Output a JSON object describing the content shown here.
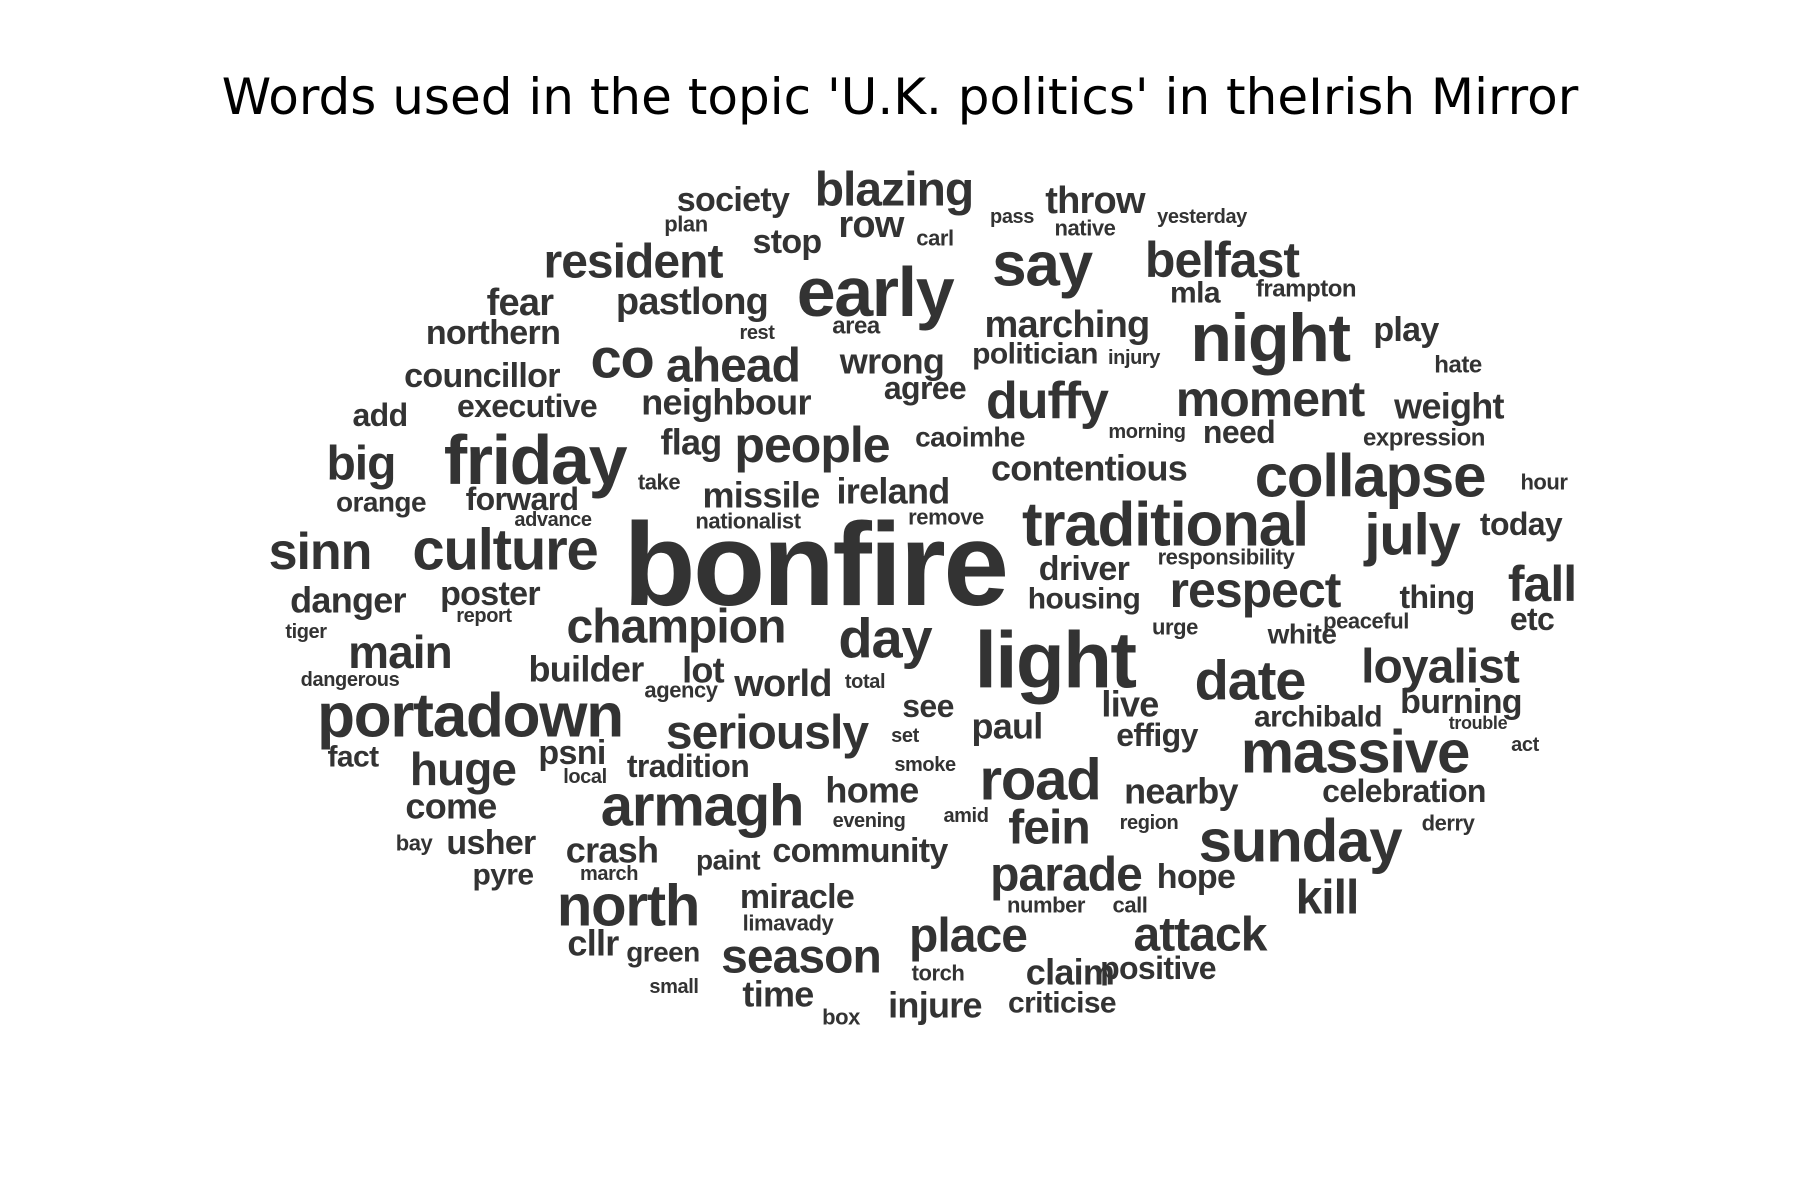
{
  "title": "Words used in the topic 'U.K. politics' in theIrish Mirror",
  "text_color": "#333333",
  "background": "#ffffff",
  "words": [
    "bonfire",
    "light",
    "friday",
    "early",
    "night",
    "collapse",
    "traditional",
    "culture",
    "massive",
    "say",
    "portadown",
    "armagh",
    "sunday",
    "road",
    "date",
    "people",
    "day",
    "respect",
    "july",
    "north",
    "belfast",
    "ahead",
    "resident",
    "champion",
    "duffy",
    "seriously",
    "moment",
    "sinn",
    "loyalist",
    "main",
    "co",
    "blazing",
    "place",
    "attack",
    "parade",
    "season",
    "huge",
    "fall",
    "fein",
    "big",
    "kill",
    "live",
    "marching",
    "contentious",
    "neighbour",
    "missile",
    "ireland",
    "society",
    "pastlong",
    "throw",
    "row",
    "stop",
    "fear",
    "northern",
    "councillor",
    "executive",
    "flag",
    "wrong",
    "politician",
    "mla",
    "play",
    "weight",
    "need",
    "danger",
    "poster",
    "builder",
    "lot",
    "world",
    "see",
    "paul",
    "effigy",
    "archibald",
    "burning",
    "psni",
    "tradition",
    "home",
    "nearby",
    "celebration",
    "come",
    "usher",
    "crash",
    "community",
    "hope",
    "miracle",
    "cllr",
    "green",
    "time",
    "claim",
    "positive",
    "criticise",
    "injure",
    "housing",
    "driver",
    "thing",
    "white",
    "fact",
    "agree",
    "caoimhe",
    "forward",
    "orange",
    "add",
    "etc",
    "today",
    "expression",
    "green",
    "hate",
    "frampton",
    "plan",
    "pass",
    "native",
    "yesterday",
    "carl",
    "rest",
    "area",
    "injury",
    "morning",
    "hour",
    "take",
    "advance",
    "nationalist",
    "remove",
    "responsibility",
    "report",
    "tiger",
    "urge",
    "peaceful",
    "dangerous",
    "agency",
    "total",
    "set",
    "trouble",
    "act",
    "smoke",
    "local",
    "evening",
    "amid",
    "region",
    "derry",
    "bay",
    "march",
    "paint",
    "pyre",
    "number",
    "call",
    "limavady",
    "torch",
    "small",
    "box"
  ]
}
